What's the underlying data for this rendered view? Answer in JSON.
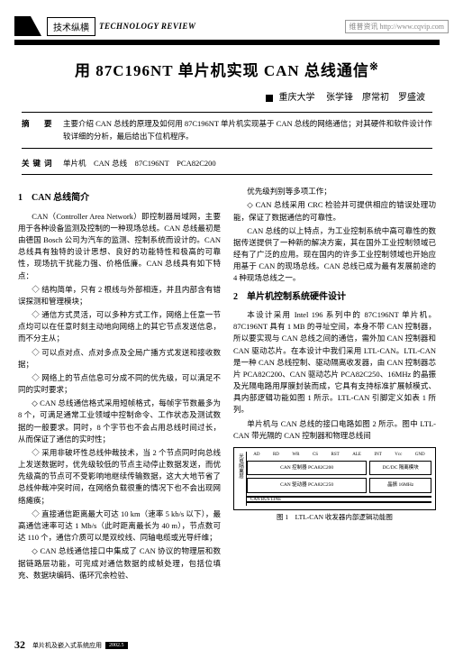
{
  "watermark": "维普资讯 http://www.cqvip.com",
  "header": {
    "section_label": "技术纵横",
    "tech_review": "TECHNOLOGY REVIEW"
  },
  "title": "用 87C196NT 单片机实现 CAN 总线通信",
  "title_marker": "※",
  "authors": {
    "affil": "重庆大学",
    "names": "张学锋　廖常初　罗盛波"
  },
  "abstract": {
    "label": "摘　要",
    "text": "主要介绍 CAN 总线的原理及如何用 87C196NT 单片机实现基于 CAN 总线的网络通信；对其硬件和软件设计作较详细的分析，最后给出下位机程序。"
  },
  "keywords": {
    "label": "关键词",
    "text": "单片机　CAN 总线　87C196NT　PCA82C200"
  },
  "left": {
    "h2": "1　CAN 总线简介",
    "p1": "CAN（Controller Area Network）即控制器局域网，主要用于各种设备监测及控制的一种现场总线。CAN 总线最初是由德国 Bosch 公司为汽车的监测、控制系统而设计的。CAN 总线具有独特的设计思想、良好的功能特性和极高的可靠性，现场抗干扰能力强、价格低廉。CAN 总线具有如下特点：",
    "b1": "◇ 结构简单，只有 2 根线与外部相连，并且内部含有错误探测和管理模块；",
    "b2": "◇ 通信方式灵活，可以多种方式工作，网络上任意一节点均可以在任意时刻主动地向网络上的其它节点发送信息，而不分主从；",
    "b3": "◇ 可以点对点、点对多点及全局广播方式发送和接收数据；",
    "b4": "◇ 网络上的节点信息可分成不同的优先级，可以满足不同的实时要求；",
    "b5": "◇ CAN 总线通信格式采用短帧格式，每帧字节数最多为 8 个，可满足通常工业领域中控制命令、工作状态及测试数据的一般要求。同时，8 个字节也不会占用总线时间过长，从而保证了通信的实时性；",
    "b6": "◇ 采用非破坏性总线仲裁技术，当 2 个节点同时向总线上发送数据时，优先级较低的节点主动停止数据发送，而优先级高的节点可不受影响地继续传输数据，这大大地节省了总线仲裁冲突时间，在网络负载很重的情况下也不会出现网络瘫痪；",
    "b7": "◇ 直接通信距离最大可达 10 km（速率 5 kb/s 以下），最高通信速率可达 1 Mb/s（此时距离最长为 40 m），节点数可达 110 个，通信介质可以是双绞线、同轴电缆或光导纤维；",
    "b8": "◇ CAN 总线通信接口中集成了 CAN 协议的物理层和数据链路层功能，可完成对通信数据的成帧处理，包括位填充、数据块编码、循环冗余检验、"
  },
  "right": {
    "p1": "优先级判别等多项工作；",
    "b1": "◇ CAN 总线采用 CRC 检验并可提供相应的错误处理功能，保证了数据通信的可靠性。",
    "p2": "CAN 总线的以上特点，为工业控制系统中高可靠性的数据传送提供了一种新的解决方案，其在国外工业控制领域已经有了广泛的应用。现在国内的许多工业控制领域也开始应用基于 CAN 的现场总线。CAN 总线已成为最有发展前途的 4 种现场总线之一。",
    "h2": "2　单片机控制系统硬件设计",
    "p3": "本设计采用 Intel 196 系列中的 87C196NT 单片机。87C196NT 具有 1 MB 的寻址空间，本身不带 CAN 控制器，所以要实现与 CAN 总线之间的通信，需外加 CAN 控制器和 CAN 驱动芯片。在本设计中我们采用 LTL-CAN。LTL-CAN 是一种 CAN 总线控制、驱动隔离收发器，由 CAN 控制器芯片 PCA82C200、CAN 驱动芯片 PCA82C250、16MHz 的晶振及光隔电路用厚膜封装而成，它具有支持标准扩展帧模式、具内部逻辑功能如图 1 所示。LTL-CAN 引脚定义如表 1 所列。",
    "p4": "单片机与 CAN 总线的接口电路如图 2 所示。图中 LTL-CAN 带光隔的 CAN 控制器和物理总线间"
  },
  "diagram": {
    "top_labels": [
      "AD",
      "RD",
      "WR",
      "CS",
      "RST",
      "ALE",
      "INT",
      "Vcc",
      "GND"
    ],
    "side": "光电隔离层",
    "box1": "CAN 控制器 PCA82C200",
    "box2": "DC/DC 隔离模块",
    "box3": "CAN 驱动器 PCA82C250",
    "box4": "晶振 16MHz",
    "bus": "CAN BUS LINE",
    "caption": "图 1　LTL-CAN 收发器内部逻辑功能图"
  },
  "footer": {
    "page": "32",
    "text": "单片机及嵌入式系统应用",
    "badge": "2002.5"
  }
}
